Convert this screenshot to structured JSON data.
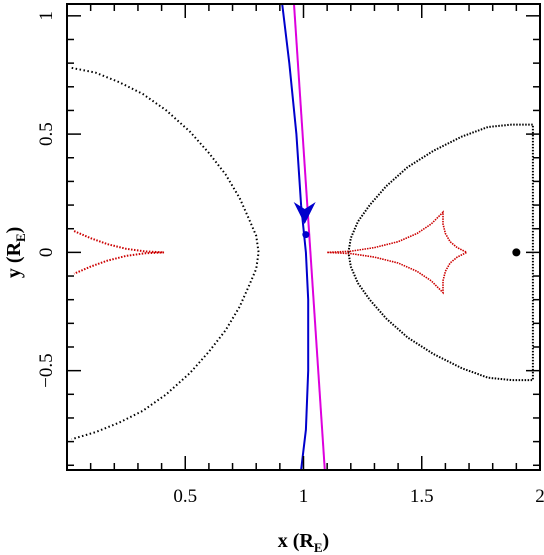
{
  "chart_data": {
    "type": "scatter",
    "title": "",
    "xlabel": {
      "main": "x (R",
      "sub": "E",
      "close": ")"
    },
    "ylabel": {
      "main": "y (R",
      "sub": "E",
      "close": ")"
    },
    "xlim": [
      0.0,
      2.0
    ],
    "ylim": [
      -0.92,
      1.05
    ],
    "xticks": [
      {
        "v": 0.5,
        "label": "0.5"
      },
      {
        "v": 1.0,
        "label": "1"
      },
      {
        "v": 1.5,
        "label": "1.5"
      },
      {
        "v": 2.0,
        "label": "2"
      }
    ],
    "yticks": [
      {
        "v": -0.5,
        "label": "−0.5"
      },
      {
        "v": 0.0,
        "label": "0"
      },
      {
        "v": 0.5,
        "label": "0.5"
      },
      {
        "v": 1.0,
        "label": "1"
      }
    ],
    "grid": false,
    "legend": "none",
    "colors": {
      "critical": "#000000",
      "caustic": "#cc0000",
      "trajectory": "#0000cc",
      "straight": "#dd00dd",
      "lens": "#000000"
    },
    "critical_left": [
      [
        0.02,
        0.78
      ],
      [
        0.12,
        0.76
      ],
      [
        0.22,
        0.72
      ],
      [
        0.32,
        0.67
      ],
      [
        0.42,
        0.6
      ],
      [
        0.52,
        0.51
      ],
      [
        0.6,
        0.42
      ],
      [
        0.67,
        0.33
      ],
      [
        0.73,
        0.23
      ],
      [
        0.77,
        0.14
      ],
      [
        0.8,
        0.07
      ],
      [
        0.81,
        0.0
      ],
      [
        0.8,
        -0.07
      ],
      [
        0.77,
        -0.14
      ],
      [
        0.73,
        -0.23
      ],
      [
        0.67,
        -0.33
      ],
      [
        0.6,
        -0.42
      ],
      [
        0.52,
        -0.51
      ],
      [
        0.42,
        -0.6
      ],
      [
        0.32,
        -0.67
      ],
      [
        0.22,
        -0.72
      ],
      [
        0.12,
        -0.76
      ],
      [
        0.02,
        -0.79
      ]
    ],
    "critical_right": [
      [
        1.19,
        0.0
      ],
      [
        1.2,
        0.06
      ],
      [
        1.23,
        0.13
      ],
      [
        1.28,
        0.2
      ],
      [
        1.35,
        0.28
      ],
      [
        1.44,
        0.36
      ],
      [
        1.55,
        0.43
      ],
      [
        1.67,
        0.49
      ],
      [
        1.78,
        0.53
      ],
      [
        1.88,
        0.54
      ],
      [
        1.97,
        0.54
      ],
      [
        1.97,
        -0.54
      ],
      [
        1.88,
        -0.54
      ],
      [
        1.78,
        -0.53
      ],
      [
        1.67,
        -0.49
      ],
      [
        1.55,
        -0.43
      ],
      [
        1.44,
        -0.36
      ],
      [
        1.35,
        -0.28
      ],
      [
        1.28,
        -0.2
      ],
      [
        1.23,
        -0.13
      ],
      [
        1.2,
        -0.06
      ],
      [
        1.19,
        0.0
      ]
    ],
    "caustic_left": [
      [
        0.03,
        0.09
      ],
      [
        0.1,
        0.06
      ],
      [
        0.17,
        0.035
      ],
      [
        0.25,
        0.015
      ],
      [
        0.33,
        0.004
      ],
      [
        0.41,
        0.0
      ],
      [
        0.33,
        -0.004
      ],
      [
        0.25,
        -0.015
      ],
      [
        0.17,
        -0.035
      ],
      [
        0.1,
        -0.06
      ],
      [
        0.03,
        -0.09
      ]
    ],
    "caustic_right": [
      [
        1.1,
        0.0
      ],
      [
        1.2,
        0.005
      ],
      [
        1.3,
        0.02
      ],
      [
        1.4,
        0.045
      ],
      [
        1.48,
        0.08
      ],
      [
        1.54,
        0.12
      ],
      [
        1.59,
        0.17
      ],
      [
        1.59,
        0.12
      ],
      [
        1.6,
        0.08
      ],
      [
        1.62,
        0.045
      ],
      [
        1.65,
        0.02
      ],
      [
        1.69,
        0.0
      ],
      [
        1.65,
        -0.02
      ],
      [
        1.62,
        -0.045
      ],
      [
        1.6,
        -0.08
      ],
      [
        1.59,
        -0.12
      ],
      [
        1.59,
        -0.17
      ],
      [
        1.54,
        -0.12
      ],
      [
        1.48,
        -0.08
      ],
      [
        1.4,
        -0.045
      ],
      [
        1.3,
        -0.02
      ],
      [
        1.2,
        -0.005
      ],
      [
        1.1,
        0.0
      ]
    ],
    "trajectory": [
      [
        0.91,
        1.05
      ],
      [
        0.94,
        0.8
      ],
      [
        0.97,
        0.5
      ],
      [
        0.99,
        0.2
      ],
      [
        1.01,
        0.0
      ],
      [
        1.02,
        -0.2
      ],
      [
        1.02,
        -0.5
      ],
      [
        1.01,
        -0.75
      ],
      [
        0.99,
        -0.92
      ]
    ],
    "straight_line": [
      [
        0.96,
        1.05
      ],
      [
        1.09,
        -0.92
      ]
    ],
    "source_position": {
      "x": 1.01,
      "y": 0.075
    },
    "arrow_tip": {
      "x": 1.005,
      "y": 0.12
    },
    "lens_position": {
      "x": 1.9,
      "y": 0.0
    }
  }
}
